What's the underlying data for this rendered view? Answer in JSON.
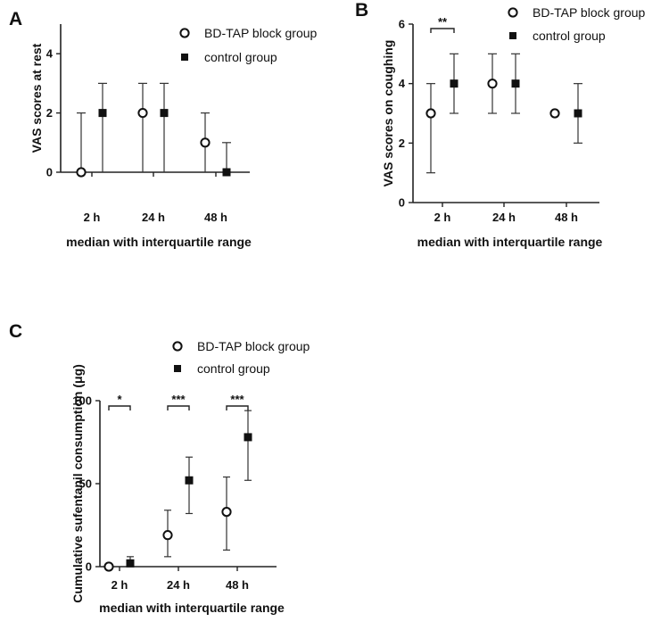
{
  "chart_data": [
    {
      "panel": "A",
      "type": "scatter",
      "title": "",
      "xlabel": "median with interquartile range",
      "ylabel": "VAS scores at rest",
      "categories": [
        "2 h",
        "24 h",
        "48 h"
      ],
      "ylim": [
        0,
        5
      ],
      "yticks": [
        0,
        2,
        4
      ],
      "grid": false,
      "legend_position": "top-right",
      "series": [
        {
          "name": "BD-TAP block group",
          "marker": "open-circle",
          "values": [
            0,
            2,
            1
          ],
          "lower": [
            0,
            0,
            0
          ],
          "upper": [
            2,
            3,
            2
          ]
        },
        {
          "name": "control group",
          "marker": "filled-square",
          "values": [
            2,
            2,
            0
          ],
          "lower": [
            0,
            0,
            0
          ],
          "upper": [
            3,
            3,
            1
          ]
        }
      ],
      "significance": [
        null,
        null,
        null
      ]
    },
    {
      "panel": "B",
      "type": "scatter",
      "title": "",
      "xlabel": "median with interquartile range",
      "ylabel": "VAS scores on coughing",
      "categories": [
        "2 h",
        "24 h",
        "48 h"
      ],
      "ylim": [
        0,
        6
      ],
      "yticks": [
        0,
        2,
        4,
        6
      ],
      "grid": false,
      "legend_position": "top-right",
      "series": [
        {
          "name": "BD-TAP block group",
          "marker": "open-circle",
          "values": [
            3,
            4,
            3
          ],
          "lower": [
            1,
            3,
            3
          ],
          "upper": [
            4,
            5,
            3
          ]
        },
        {
          "name": "control group",
          "marker": "filled-square",
          "values": [
            4,
            4,
            3
          ],
          "lower": [
            3,
            3,
            2
          ],
          "upper": [
            5,
            5,
            4
          ]
        }
      ],
      "significance": [
        "**",
        null,
        null
      ]
    },
    {
      "panel": "C",
      "type": "scatter",
      "title": "",
      "xlabel": "median with interquartile range",
      "ylabel": "Cumulative sufentanil consumption (μg)",
      "categories": [
        "2 h",
        "24 h",
        "48 h"
      ],
      "ylim": [
        0,
        100
      ],
      "yticks": [
        0,
        50,
        100
      ],
      "grid": false,
      "legend_position": "top-right",
      "series": [
        {
          "name": "BD-TAP block group",
          "marker": "open-circle",
          "values": [
            0,
            19,
            33
          ],
          "lower": [
            0,
            6,
            10
          ],
          "upper": [
            0,
            34,
            54
          ]
        },
        {
          "name": "control group",
          "marker": "filled-square",
          "values": [
            2,
            52,
            78
          ],
          "lower": [
            0,
            32,
            52
          ],
          "upper": [
            6,
            66,
            94
          ]
        }
      ],
      "significance": [
        "*",
        "***",
        "***"
      ]
    }
  ]
}
